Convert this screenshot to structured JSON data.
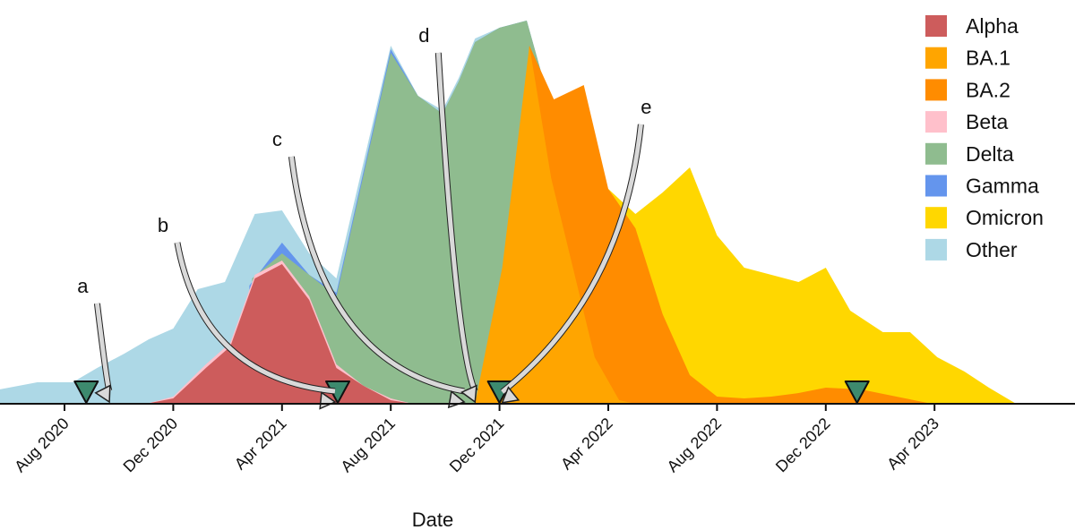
{
  "chart_data": {
    "type": "area",
    "title": "",
    "xlabel": "Date",
    "ylabel": "",
    "x_units": "months since Aug 2020",
    "xlim": [
      -2.4,
      37.3
    ],
    "ylim": [
      0,
      113
    ],
    "grid": false,
    "legend_position": "top-right",
    "x_ticks": [
      {
        "m": 0,
        "label": "Aug 2020"
      },
      {
        "m": 4,
        "label": "Dec 2020"
      },
      {
        "m": 8,
        "label": "Apr 2021"
      },
      {
        "m": 12,
        "label": "Aug 2021"
      },
      {
        "m": 16,
        "label": "Dec 2021"
      },
      {
        "m": 20,
        "label": "Apr 2022"
      },
      {
        "m": 24,
        "label": "Aug 2022"
      },
      {
        "m": 28,
        "label": "Dec 2022"
      },
      {
        "m": 32,
        "label": "Apr 2023"
      }
    ],
    "legend": [
      {
        "name": "Alpha",
        "color": "#cd5c5c"
      },
      {
        "name": "BA.1",
        "color": "#ffa500"
      },
      {
        "name": "BA.2",
        "color": "#ff8c00"
      },
      {
        "name": "Beta",
        "color": "#ffc0cb"
      },
      {
        "name": "Delta",
        "color": "#8fbc8f"
      },
      {
        "name": "Gamma",
        "color": "#6495ed"
      },
      {
        "name": "Omicron",
        "color": "#ffd700"
      },
      {
        "name": "Other",
        "color": "#add8e6"
      }
    ],
    "series": [
      {
        "name": "Other",
        "color": "#add8e6",
        "points": [
          [
            -2.4,
            4
          ],
          [
            -1,
            6
          ],
          [
            0.3,
            6
          ],
          [
            1.2,
            10
          ],
          [
            2.2,
            14
          ],
          [
            3.1,
            18
          ],
          [
            4,
            21
          ],
          [
            4.9,
            32
          ],
          [
            5.9,
            34
          ],
          [
            7,
            53
          ],
          [
            8,
            54
          ],
          [
            9,
            42
          ],
          [
            10,
            35
          ],
          [
            12,
            100
          ],
          [
            13,
            86
          ],
          [
            13.9,
            82
          ],
          [
            14.5,
            91
          ],
          [
            15.1,
            102
          ],
          [
            16,
            105
          ],
          [
            17,
            107
          ],
          [
            17.7,
            88
          ],
          [
            18.2,
            0
          ]
        ]
      },
      {
        "name": "Gamma",
        "color": "#6495ed",
        "points": [
          [
            6.8,
            33
          ],
          [
            8,
            45
          ],
          [
            9,
            36
          ],
          [
            10,
            31
          ],
          [
            12,
            99
          ],
          [
            13,
            86
          ],
          [
            13.9,
            81
          ],
          [
            14.5,
            90
          ],
          [
            15.1,
            101
          ],
          [
            16,
            105
          ],
          [
            17,
            107
          ],
          [
            17.7,
            88
          ],
          [
            18.2,
            0
          ]
        ]
      },
      {
        "name": "Delta",
        "color": "#8fbc8f",
        "points": [
          [
            6.9,
            35
          ],
          [
            8,
            42
          ],
          [
            9,
            36
          ],
          [
            10,
            30
          ],
          [
            12,
            98
          ],
          [
            13,
            86
          ],
          [
            13.9,
            81
          ],
          [
            14.5,
            90
          ],
          [
            15.1,
            101
          ],
          [
            16,
            105
          ],
          [
            17,
            107
          ],
          [
            17.7,
            88
          ],
          [
            18.3,
            0
          ]
        ]
      },
      {
        "name": "Beta",
        "color": "#ffc0cb",
        "points": [
          [
            3,
            0
          ],
          [
            4,
            2
          ],
          [
            5.2,
            11
          ],
          [
            6.1,
            17
          ],
          [
            7,
            36
          ],
          [
            8,
            40
          ],
          [
            9,
            30
          ],
          [
            10,
            11
          ],
          [
            11,
            5
          ],
          [
            12,
            1.5
          ],
          [
            12.8,
            0
          ]
        ]
      },
      {
        "name": "Alpha",
        "color": "#cd5c5c",
        "points": [
          [
            3,
            0
          ],
          [
            4,
            1.5
          ],
          [
            5.2,
            10
          ],
          [
            6.1,
            16
          ],
          [
            7,
            35
          ],
          [
            8,
            39
          ],
          [
            9,
            29
          ],
          [
            10,
            10
          ],
          [
            11,
            5
          ],
          [
            12,
            1
          ],
          [
            12.8,
            0
          ]
        ]
      },
      {
        "name": "Omicron",
        "color": "#ffd700",
        "points": [
          [
            18.5,
            0
          ],
          [
            18.7,
            38
          ],
          [
            20,
            60
          ],
          [
            21,
            53
          ],
          [
            22,
            59
          ],
          [
            23,
            66
          ],
          [
            24,
            47
          ],
          [
            25,
            38
          ],
          [
            26,
            36
          ],
          [
            27,
            34
          ],
          [
            28,
            38
          ],
          [
            28.9,
            26
          ],
          [
            30.1,
            20
          ],
          [
            31.1,
            20
          ],
          [
            32.1,
            13
          ],
          [
            33.1,
            9
          ],
          [
            34,
            4.5
          ],
          [
            35,
            0
          ]
        ]
      },
      {
        "name": "BA.2",
        "color": "#ff8c00",
        "points": [
          [
            16,
            0
          ],
          [
            17.1,
            100
          ],
          [
            18,
            85
          ],
          [
            19.1,
            89
          ],
          [
            20,
            60
          ],
          [
            21,
            49
          ],
          [
            22,
            25
          ],
          [
            23,
            8
          ],
          [
            24,
            2
          ],
          [
            25,
            1.5
          ],
          [
            26,
            2
          ],
          [
            27,
            3
          ],
          [
            28,
            4.5
          ],
          [
            29.3,
            4
          ],
          [
            30.6,
            2
          ],
          [
            31.9,
            0
          ]
        ]
      },
      {
        "name": "BA.1",
        "color": "#ffa500",
        "points": [
          [
            15.1,
            0
          ],
          [
            16.1,
            38
          ],
          [
            17.1,
            100
          ],
          [
            17.9,
            63
          ],
          [
            18.7,
            38
          ],
          [
            19.5,
            13
          ],
          [
            20.4,
            1
          ],
          [
            21,
            0
          ]
        ]
      }
    ],
    "markers": [
      0.8,
      10.05,
      16,
      29.15
    ],
    "marker_color": "#3d8a6e",
    "annotations": [
      {
        "label": "a",
        "from": [
          1.2,
          28
        ],
        "to": [
          1.65,
          0.5
        ]
      },
      {
        "label": "b",
        "from": [
          4.15,
          45
        ],
        "to": [
          9.95,
          0.5
        ]
      },
      {
        "label": "c",
        "from": [
          8.35,
          69
        ],
        "to": [
          14.7,
          0.5
        ]
      },
      {
        "label": "d",
        "from": [
          13.75,
          98
        ],
        "to": [
          15.1,
          0.5
        ]
      },
      {
        "label": "e",
        "from": [
          21.2,
          78
        ],
        "to": [
          16.1,
          0.3
        ]
      }
    ]
  }
}
